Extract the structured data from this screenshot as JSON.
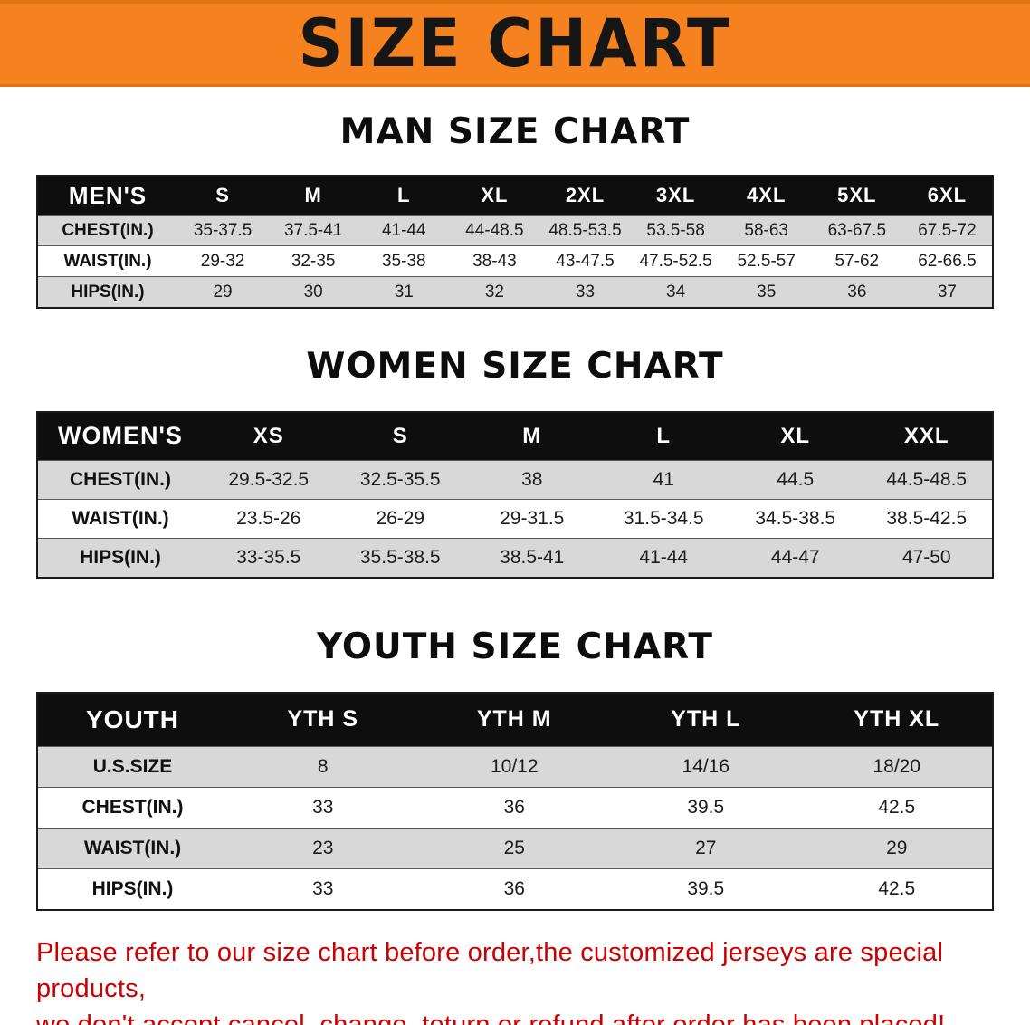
{
  "banner": {
    "title": "SIZE CHART",
    "bg_color": "#f5821e",
    "text_color": "#161616"
  },
  "sections": [
    {
      "id": "men",
      "heading": "MAN SIZE CHART",
      "table": {
        "header": [
          "MEN'S",
          "S",
          "M",
          "L",
          "XL",
          "2XL",
          "3XL",
          "4XL",
          "5XL",
          "6XL"
        ],
        "rows": [
          [
            "CHEST(IN.)",
            "35-37.5",
            "37.5-41",
            "41-44",
            "44-48.5",
            "48.5-53.5",
            "53.5-58",
            "58-63",
            "63-67.5",
            "67.5-72"
          ],
          [
            "WAIST(IN.)",
            "29-32",
            "32-35",
            "35-38",
            "38-43",
            "43-47.5",
            "47.5-52.5",
            "52.5-57",
            "57-62",
            "62-66.5"
          ],
          [
            "HIPS(IN.)",
            "29",
            "30",
            "31",
            "32",
            "33",
            "34",
            "35",
            "36",
            "37"
          ]
        ]
      }
    },
    {
      "id": "women",
      "heading": "WOMEN SIZE CHART",
      "table": {
        "header": [
          "WOMEN'S",
          "XS",
          "S",
          "M",
          "L",
          "XL",
          "XXL"
        ],
        "rows": [
          [
            "CHEST(IN.)",
            "29.5-32.5",
            "32.5-35.5",
            "38",
            "41",
            "44.5",
            "44.5-48.5"
          ],
          [
            "WAIST(IN.)",
            "23.5-26",
            "26-29",
            "29-31.5",
            "31.5-34.5",
            "34.5-38.5",
            "38.5-42.5"
          ],
          [
            "HIPS(IN.)",
            "33-35.5",
            "35.5-38.5",
            "38.5-41",
            "41-44",
            "44-47",
            "47-50"
          ]
        ]
      }
    },
    {
      "id": "youth",
      "heading": "YOUTH SIZE CHART",
      "table": {
        "header": [
          "YOUTH",
          "YTH S",
          "YTH M",
          "YTH L",
          "YTH XL"
        ],
        "rows": [
          [
            "U.S.SIZE",
            "8",
            "10/12",
            "14/16",
            "18/20"
          ],
          [
            "CHEST(IN.)",
            "33",
            "36",
            "39.5",
            "42.5"
          ],
          [
            "WAIST(IN.)",
            "23",
            "25",
            "27",
            "29"
          ],
          [
            "HIPS(IN.)",
            "33",
            "36",
            "39.5",
            "42.5"
          ]
        ]
      }
    }
  ],
  "footer": {
    "line1": "Please refer to our size chart before order,the customized jerseys are special products,",
    "line2": "we don't accept cancel, change, teturn or refund after order has been placed!",
    "text_color": "#cc0000"
  }
}
